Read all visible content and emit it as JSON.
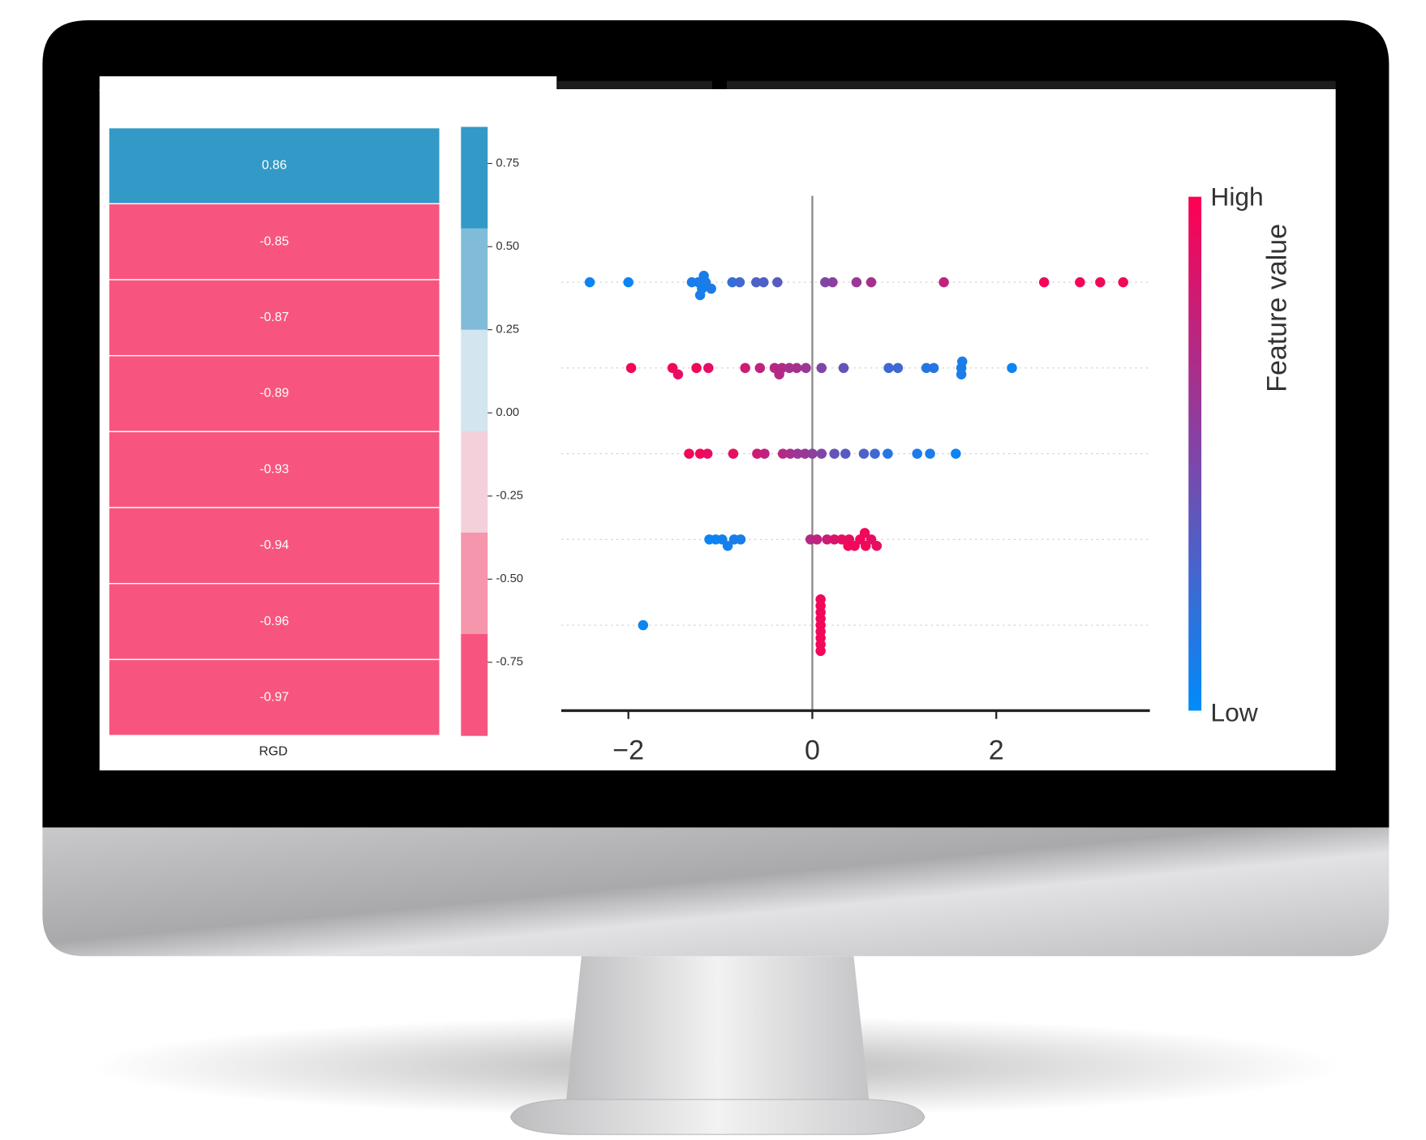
{
  "chart_data": [
    {
      "type": "heatmap",
      "xlabel": "RGD",
      "values": [
        0.86,
        -0.85,
        -0.87,
        -0.89,
        -0.93,
        -0.94,
        -0.96,
        -0.97
      ],
      "value_labels": [
        "0.86",
        "-0.85",
        "-0.87",
        "-0.89",
        "-0.93",
        "-0.94",
        "-0.96",
        "-0.97"
      ],
      "colorbar": {
        "lim": [
          -0.97,
          0.86
        ],
        "colors": [
          "#3399c6",
          "#80bcd9",
          "#d3e5ee",
          "#f3d0da",
          "#f596ad",
          "#f7557f"
        ],
        "ticks": [
          {
            "value": 0.75,
            "label": "0.75"
          },
          {
            "value": 0.5,
            "label": "0.50"
          },
          {
            "value": 0.25,
            "label": "0.25"
          },
          {
            "value": 0,
            "label": "0.00"
          },
          {
            "value": -0.25,
            "label": "-0.25"
          },
          {
            "value": -0.5,
            "label": "-0.50"
          },
          {
            "value": -0.75,
            "label": "-0.75"
          }
        ]
      }
    },
    {
      "type": "beeswarm",
      "xlim": [
        -2.73,
        3.67
      ],
      "xticks": [
        {
          "value": -2,
          "label": "−2"
        },
        0,
        2
      ],
      "series": [
        {
          "values": [
            -2.42,
            -2.0,
            -1.31,
            -1.24,
            -1.2,
            -1.18,
            -1.16,
            -1.1,
            -1.22,
            -0.87,
            -0.79,
            -0.61,
            -0.53,
            -0.38,
            0.14,
            0.22,
            0.48,
            0.64,
            1.43,
            2.52,
            2.91,
            3.13,
            3.38
          ],
          "feature_values": [
            0.05,
            0.05,
            0.1,
            0.1,
            0.08,
            0.1,
            0.1,
            0.12,
            0.1,
            0.2,
            0.25,
            0.3,
            0.3,
            0.35,
            0.5,
            0.55,
            0.6,
            0.65,
            0.75,
            0.95,
            0.95,
            0.95,
            0.95
          ]
        },
        {
          "values": [
            -1.97,
            -1.52,
            -1.46,
            -1.26,
            -1.13,
            -0.73,
            -0.57,
            -0.41,
            -0.36,
            -0.33,
            -0.25,
            -0.17,
            -0.07,
            0.1,
            0.34,
            0.83,
            0.93,
            1.24,
            1.32,
            1.62,
            1.62,
            1.63,
            2.17
          ],
          "feature_values": [
            0.95,
            0.95,
            0.9,
            0.95,
            0.9,
            0.8,
            0.75,
            0.7,
            0.7,
            0.7,
            0.65,
            0.65,
            0.6,
            0.5,
            0.4,
            0.25,
            0.25,
            0.15,
            0.15,
            0.1,
            0.1,
            0.1,
            0.05
          ]
        },
        {
          "values": [
            -1.34,
            -1.22,
            -1.14,
            -0.86,
            -0.6,
            -0.52,
            -0.32,
            -0.24,
            -0.16,
            -0.08,
            0,
            0.1,
            0.24,
            0.36,
            0.56,
            0.68,
            0.82,
            1.14,
            1.28,
            1.56
          ],
          "feature_values": [
            0.95,
            0.95,
            0.9,
            0.9,
            0.8,
            0.75,
            0.7,
            0.65,
            0.6,
            0.6,
            0.55,
            0.5,
            0.4,
            0.35,
            0.3,
            0.25,
            0.15,
            0.1,
            0.1,
            0.05
          ]
        },
        {
          "values": [
            -1.12,
            -1.05,
            -0.98,
            -0.92,
            -0.85,
            -0.78,
            -0.02,
            0.05,
            0.16,
            0.24,
            0.32,
            0.4,
            0.46,
            0.52,
            0.58,
            0.64,
            0.7,
            0.39,
            0.57
          ],
          "feature_values": [
            0.05,
            0.05,
            0.08,
            0.08,
            0.1,
            0.1,
            0.7,
            0.75,
            0.8,
            0.85,
            0.9,
            0.9,
            0.95,
            0.95,
            0.95,
            0.9,
            0.9,
            0.95,
            0.95
          ]
        },
        {
          "values": [
            -1.84,
            0.09,
            0.09,
            0.09,
            0.09,
            0.09,
            0.09,
            0.09,
            0.09,
            0.09
          ],
          "feature_values": [
            0.05,
            0.95,
            0.95,
            0.95,
            0.95,
            0.95,
            0.95,
            0.95,
            0.95,
            0.95
          ]
        }
      ],
      "colorbar": {
        "high_label": "High",
        "low_label": "Low",
        "title": "Feature value",
        "low_color": "#008bfb",
        "high_color": "#ff0052"
      }
    }
  ]
}
